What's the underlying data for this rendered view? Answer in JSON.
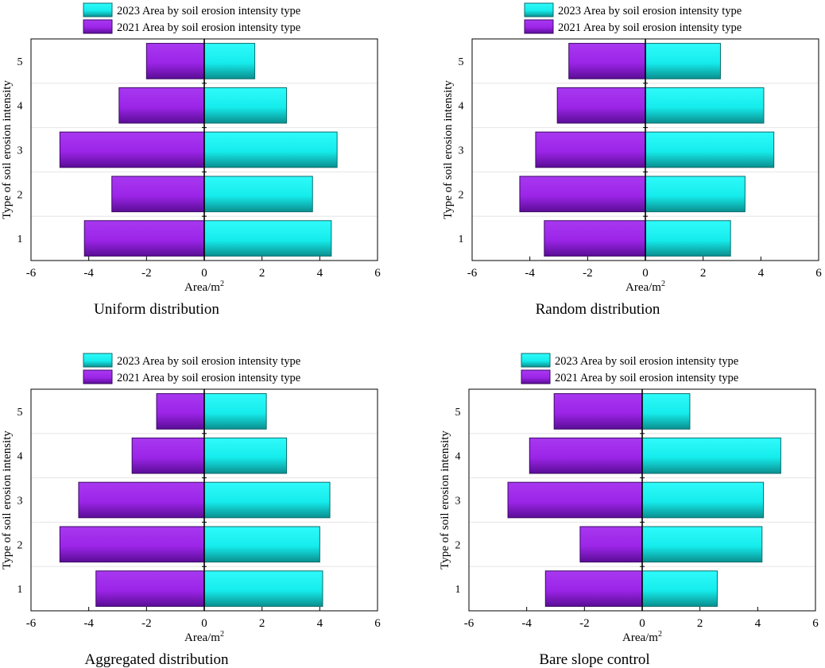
{
  "colors": {
    "series_2023_fill": "#16ecec",
    "series_2023_stroke": "#0d6d6d",
    "series_2021_fill": "#9c25e8",
    "series_2021_stroke": "#3b0a63",
    "frame": "#000000"
  },
  "chart_data": [
    {
      "type": "bar",
      "orientation": "horizontal",
      "title": "Uniform distribution",
      "xlabel": "Area/m",
      "xlabel_superscript": "2",
      "ylabel": "Type of soil erosion intensity",
      "xlim": [
        -6,
        6
      ],
      "xticks": [
        -6,
        -4,
        -2,
        0,
        2,
        4,
        6
      ],
      "categories": [
        "1",
        "2",
        "3",
        "4",
        "5"
      ],
      "series": [
        {
          "name": "2023 Area by soil erosion intensity type",
          "values": [
            4.4,
            3.75,
            4.6,
            2.85,
            1.75
          ]
        },
        {
          "name": "2021 Area by soil erosion intensity type",
          "values": [
            -4.15,
            -3.2,
            -5.0,
            -2.95,
            -2.0
          ]
        }
      ]
    },
    {
      "type": "bar",
      "orientation": "horizontal",
      "title": "Random distribution",
      "xlabel": "Area/m",
      "xlabel_superscript": "2",
      "ylabel": "Type of soil erosion intensity",
      "xlim": [
        -6,
        6
      ],
      "xticks": [
        -6,
        -4,
        -2,
        0,
        2,
        4,
        6
      ],
      "categories": [
        "1",
        "2",
        "3",
        "4",
        "5"
      ],
      "series": [
        {
          "name": "2023 Area by soil erosion intensity type",
          "values": [
            2.95,
            3.45,
            4.45,
            4.1,
            2.6
          ]
        },
        {
          "name": "2021 Area by soil erosion intensity type",
          "values": [
            -3.5,
            -4.35,
            -3.8,
            -3.05,
            -2.65
          ]
        }
      ]
    },
    {
      "type": "bar",
      "orientation": "horizontal",
      "title": "Aggregated distribution",
      "xlabel": "Area/m",
      "xlabel_superscript": "2",
      "ylabel": "Type of soil erosion intensity",
      "xlim": [
        -6,
        6
      ],
      "xticks": [
        -6,
        -4,
        -2,
        0,
        2,
        4,
        6
      ],
      "categories": [
        "1",
        "2",
        "3",
        "4",
        "5"
      ],
      "series": [
        {
          "name": "2023 Area by soil erosion intensity type",
          "values": [
            4.1,
            4.0,
            4.35,
            2.85,
            2.15
          ]
        },
        {
          "name": "2021 Area by soil erosion intensity type",
          "values": [
            -3.75,
            -5.0,
            -4.35,
            -2.5,
            -1.65
          ]
        }
      ]
    },
    {
      "type": "bar",
      "orientation": "horizontal",
      "title": "Bare slope control",
      "xlabel": "Area/m",
      "xlabel_superscript": "2",
      "ylabel": "Type of soil erosion intensity",
      "xlim": [
        -6,
        6
      ],
      "xticks": [
        -6,
        -4,
        -2,
        0,
        2,
        4,
        6
      ],
      "categories": [
        "1",
        "2",
        "3",
        "4",
        "5"
      ],
      "series": [
        {
          "name": "2023 Area by soil erosion intensity type",
          "values": [
            2.6,
            4.15,
            4.2,
            4.8,
            1.65
          ]
        },
        {
          "name": "2021 Area by soil erosion intensity type",
          "values": [
            -3.35,
            -2.15,
            -4.65,
            -3.9,
            -3.05
          ]
        }
      ]
    }
  ]
}
